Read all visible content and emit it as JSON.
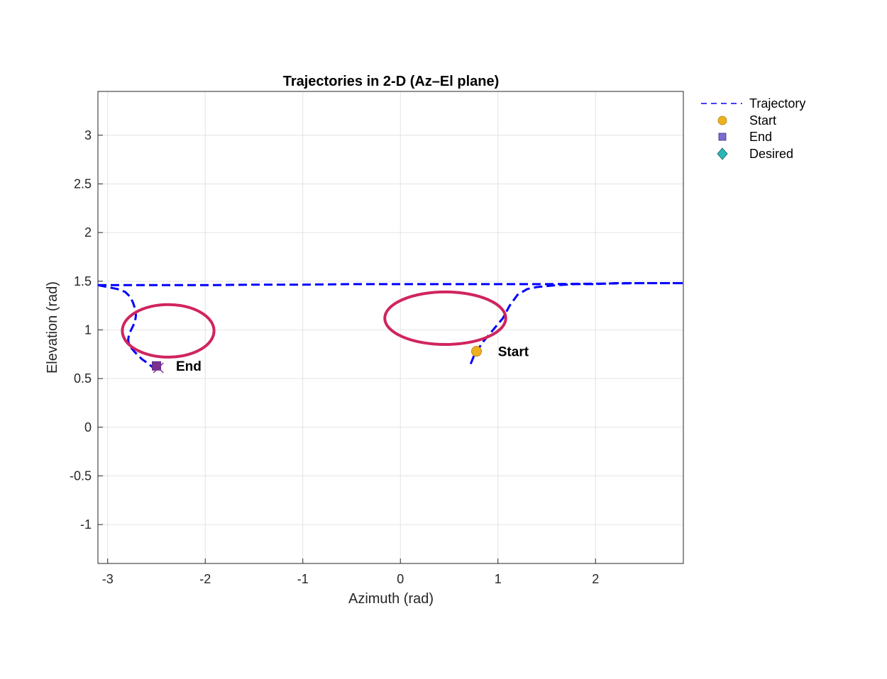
{
  "chart_data": {
    "type": "line",
    "title": "Trajectories in 2-D (Az–El plane)",
    "xlabel": "Azimuth (rad)",
    "ylabel": "Elevation (rad)",
    "xlim": [
      -3.1,
      2.9
    ],
    "ylim": [
      -1.4,
      3.45
    ],
    "xticks": [
      -3,
      -2,
      -1,
      0,
      1,
      2
    ],
    "xtick_labels": [
      "-3",
      "-2",
      "-1",
      "0",
      "1",
      "2"
    ],
    "yticks": [
      -1,
      -0.5,
      0,
      0.5,
      1,
      1.5,
      2,
      2.5,
      3
    ],
    "ytick_labels": [
      "-1",
      "-0.5",
      "0",
      "0.5",
      "1",
      "1.5",
      "2",
      "2.5",
      "3"
    ],
    "grid": true,
    "legend_position": "outside-top-right",
    "series": [
      {
        "name": "Trajectory",
        "style": "dashed",
        "color": "#0000ff",
        "segments": [
          {
            "x": [
              0.72,
              0.76,
              0.85,
              0.95,
              1.05,
              1.12,
              1.2,
              1.3,
              1.4,
              1.5,
              1.6,
              1.8,
              2.0,
              2.2,
              2.4,
              2.6,
              2.8,
              2.9
            ],
            "y": [
              0.65,
              0.75,
              0.88,
              1.0,
              1.12,
              1.25,
              1.36,
              1.42,
              1.44,
              1.45,
              1.46,
              1.47,
              1.47,
              1.48,
              1.48,
              1.48,
              1.48,
              1.48
            ]
          },
          {
            "x": [
              -3.1,
              -2.5,
              -2.0,
              -1.5,
              -1.0,
              -0.5,
              0.0,
              0.5,
              1.0,
              1.5,
              2.0,
              2.5,
              2.9
            ],
            "y": [
              1.46,
              1.46,
              1.46,
              1.465,
              1.465,
              1.47,
              1.47,
              1.47,
              1.47,
              1.47,
              1.475,
              1.48,
              1.48
            ]
          },
          {
            "x": [
              -3.1,
              -3.0,
              -2.9,
              -2.82,
              -2.77,
              -2.74,
              -2.72,
              -2.71,
              -2.72,
              -2.75,
              -2.78,
              -2.79,
              -2.78,
              -2.72,
              -2.65,
              -2.58,
              -2.52
            ],
            "y": [
              1.46,
              1.44,
              1.42,
              1.39,
              1.34,
              1.28,
              1.22,
              1.15,
              1.08,
              1.02,
              0.96,
              0.9,
              0.84,
              0.77,
              0.7,
              0.65,
              0.6
            ]
          }
        ]
      },
      {
        "name": "Start",
        "marker": "circle",
        "color": "#edb120",
        "x": [
          0.78
        ],
        "y": [
          0.78
        ]
      },
      {
        "name": "End",
        "marker": "square",
        "color": "#7e2f8e",
        "x": [
          -2.5
        ],
        "y": [
          0.63
        ]
      },
      {
        "name": "Desired",
        "marker": "diamond",
        "color": "#2ab7b7",
        "x": [],
        "y": []
      }
    ],
    "end_cross": {
      "x": -2.48,
      "y": 0.61,
      "color": "#7e2f8e"
    },
    "annotations": [
      {
        "text": "Start",
        "x": 1.0,
        "y": 0.78
      },
      {
        "text": "End",
        "x": -2.3,
        "y": 0.63
      }
    ],
    "highlights": [
      {
        "cx": -2.38,
        "cy": 0.99,
        "rx": 0.47,
        "ry": 0.27,
        "color": "#d0245e"
      },
      {
        "cx": 0.46,
        "cy": 1.12,
        "rx": 0.62,
        "ry": 0.27,
        "color": "#d0245e"
      }
    ]
  }
}
